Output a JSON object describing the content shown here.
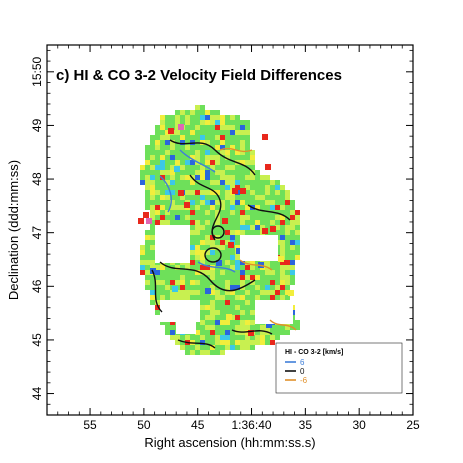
{
  "chart_data": {
    "type": "heatmap",
    "title": "c) HI & CO 3-2 Velocity Field Differences",
    "xlabel": "Right ascension (hh:mm:ss.s)",
    "ylabel": "Declination (ddd:mm:ss)",
    "x_ticks": [
      "55",
      "50",
      "45",
      "1:36:40",
      "35",
      "30",
      "25"
    ],
    "x_tick_seconds": [
      55,
      50,
      45,
      40,
      35,
      30,
      25
    ],
    "xlim": [
      59,
      25
    ],
    "y_ticks": [
      "44",
      "45",
      "46",
      "47",
      "48",
      "49",
      "15:50"
    ],
    "y_tick_minutes": [
      44,
      45,
      46,
      47,
      48,
      49,
      50
    ],
    "ylim": [
      43.6,
      50.5
    ],
    "grid": false,
    "legend": {
      "title": "HI - CO 3-2 [km/s]",
      "position": "bottom-right",
      "entries": [
        {
          "label": "6",
          "color": "#3f7fd8"
        },
        {
          "label": "0",
          "color": "#111111"
        },
        {
          "label": "-6",
          "color": "#e0902a"
        }
      ]
    },
    "colors": {
      "field_base": "#6ee05a",
      "field_light": "#c8f050",
      "field_yellow": "#f2ee3c",
      "positive": "#2a66dc",
      "cyan": "#3cc8e8",
      "negative": "#e8281c",
      "magenta": "#e066b4",
      "contour_zero": "#111111"
    }
  }
}
